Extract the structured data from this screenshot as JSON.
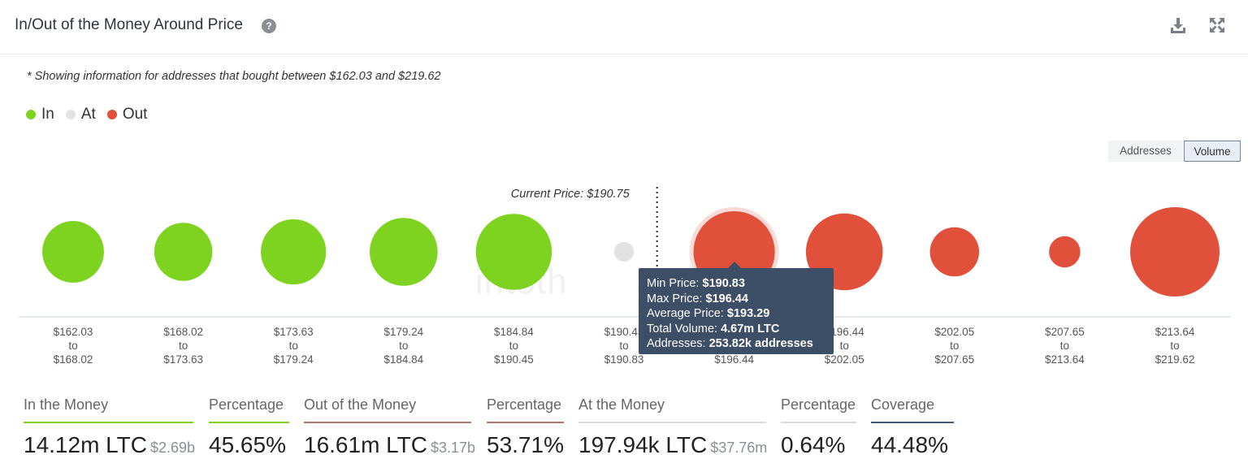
{
  "header": {
    "title": "In/Out of the Money Around Price",
    "help_icon": "question-circle-icon",
    "download_icon": "download-icon",
    "fullscreen_icon": "expand-icon"
  },
  "note": "* Showing information for addresses that bought between $162.03 and $219.62",
  "legend": [
    {
      "label": "In",
      "color": "#7ed321"
    },
    {
      "label": "At",
      "color": "#e2e2e2"
    },
    {
      "label": "Out",
      "color": "#e0503a"
    }
  ],
  "toggle": {
    "addresses": "Addresses",
    "volume": "Volume",
    "active": "Volume"
  },
  "watermark": "intoth",
  "chart_data": {
    "type": "bubble",
    "current_price_label": "Current Price: $190.75",
    "current_price": 190.75,
    "colors": {
      "In": "#7ed321",
      "At": "#e2e2e2",
      "Out": "#e0503a"
    },
    "bins": [
      {
        "from": "$162.03",
        "to_word": "to",
        "to": "$168.02",
        "status": "In"
      },
      {
        "from": "$168.02",
        "to_word": "to",
        "to": "$173.63",
        "status": "In"
      },
      {
        "from": "$173.63",
        "to_word": "to",
        "to": "$179.24",
        "status": "In"
      },
      {
        "from": "$179.24",
        "to_word": "to",
        "to": "$184.84",
        "status": "In"
      },
      {
        "from": "$184.84",
        "to_word": "to",
        "to": "$190.45",
        "status": "In"
      },
      {
        "from": "$190.45",
        "to_word": "to",
        "to": "$190.83",
        "status": "At"
      },
      {
        "from": "$190.83",
        "to_word": "to",
        "to": "$196.44",
        "status": "Out",
        "volume": "4.67m LTC",
        "addresses": "253.82k addresses",
        "highlighted": true
      },
      {
        "from": "$196.44",
        "to_word": "to",
        "to": "$202.05",
        "status": "Out"
      },
      {
        "from": "$202.05",
        "to_word": "to",
        "to": "$207.65",
        "status": "Out"
      },
      {
        "from": "$207.65",
        "to_word": "to",
        "to": "$213.64",
        "status": "Out"
      },
      {
        "from": "$213.64",
        "to_word": "to",
        "to": "$219.62",
        "status": "Out"
      }
    ],
    "relative_size": [
      0.69,
      0.65,
      0.73,
      0.76,
      0.85,
      0.22,
      0.91,
      0.86,
      0.55,
      0.35,
      1.0
    ]
  },
  "tooltip": {
    "min_label": "Min Price: ",
    "min_value": "$190.83",
    "max_label": "Max Price: ",
    "max_value": "$196.44",
    "avg_label": "Average Price: ",
    "avg_value": "$193.29",
    "vol_label": "Total Volume: ",
    "vol_value": "4.67m LTC",
    "addr_label": "Addresses: ",
    "addr_value": "253.82k addresses"
  },
  "stats": [
    {
      "label": "In the Money",
      "value": "14.12m LTC",
      "sub": "$2.69b",
      "color": "#7ed321"
    },
    {
      "label": "Percentage",
      "value": "45.65%",
      "sub": "",
      "color": "#7ed321"
    },
    {
      "label": "Out of the Money",
      "value": "16.61m LTC",
      "sub": "$3.17b",
      "color": "#b07866"
    },
    {
      "label": "Percentage",
      "value": "53.71%",
      "sub": "",
      "color": "#b07866"
    },
    {
      "label": "At the Money",
      "value": "197.94k LTC",
      "sub": "$37.76m",
      "color": "#d6d9dd"
    },
    {
      "label": "Percentage",
      "value": "0.64%",
      "sub": "",
      "color": "#d6d9dd"
    },
    {
      "label": "Coverage",
      "value": "44.48%",
      "sub": "",
      "color": "#3d5a80"
    }
  ]
}
